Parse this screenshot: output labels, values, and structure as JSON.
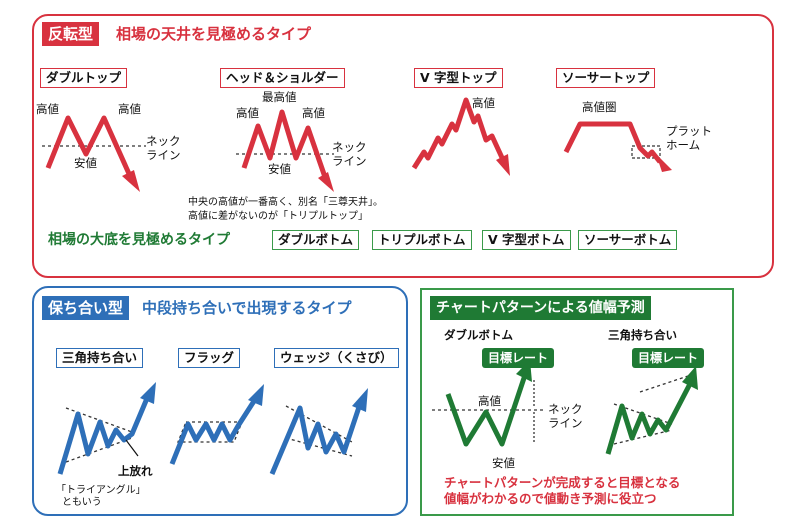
{
  "reversal": {
    "tag": "反転型",
    "heading": "相場の天井を見極めるタイプ",
    "patterns": [
      {
        "title": "ダブルトップ",
        "labels": [
          "高値",
          "高値",
          "ネック",
          "ライン",
          "安値"
        ]
      },
      {
        "title": "ヘッド＆ショルダー",
        "labels": [
          "最高値",
          "高値",
          "高値",
          "ネック",
          "ライン",
          "安値"
        ]
      },
      {
        "title": "V 字型トップ",
        "labels": [
          "高値"
        ]
      },
      {
        "title": "ソーサートップ",
        "labels": [
          "高値圏",
          "プラット",
          "ホーム"
        ]
      }
    ],
    "note_lines": [
      "中央の高値が一番高く、別名「三尊天井」。",
      "高値に差がないのが「トリプルトップ」"
    ],
    "bottom_heading": "相場の大底を見極めるタイプ",
    "bottom_types": [
      "ダブルボトム",
      "トリプルボトム",
      "V 字型ボトム",
      "ソーサーボトム"
    ]
  },
  "consolidation": {
    "tag": "保ち合い型",
    "heading": "中段持ち合いで出現するタイプ",
    "patterns": [
      {
        "title": "三角持ち合い"
      },
      {
        "title": "フラッグ"
      },
      {
        "title": "ウェッジ（くさび）"
      }
    ],
    "breakout_label": "上放れ",
    "triangle_note": [
      "「トライアングル」",
      "ともいう"
    ]
  },
  "target": {
    "title": "チャートパターンによる値幅予測",
    "patterns": [
      {
        "title": "ダブルボトム",
        "target_label": "目標レート",
        "labels": [
          "高値",
          "ネック",
          "ライン",
          "安値"
        ]
      },
      {
        "title": "三角持ち合い",
        "target_label": "目標レート"
      }
    ],
    "conclusion": [
      "チャートパターンが完成すると目標となる",
      "値幅がわかるので値動き予測に役立つ"
    ]
  },
  "colors": {
    "red": "#d8323f",
    "blue": "#2e6fb8",
    "green": "#1f7a34"
  }
}
